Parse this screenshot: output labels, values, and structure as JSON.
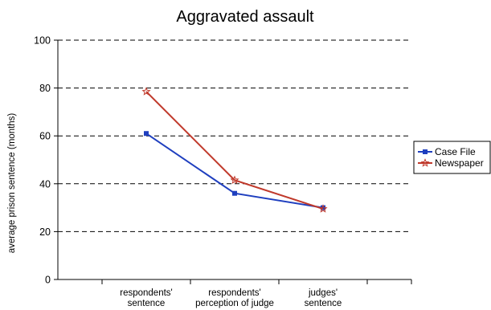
{
  "chart_data": {
    "type": "line",
    "title": "Aggravated assault",
    "xlabel": "",
    "ylabel": "average prison sentence (months)",
    "ylim": [
      0,
      100
    ],
    "yticks": [
      0,
      20,
      40,
      60,
      80,
      100
    ],
    "grid": "horizontal dashed",
    "legend_position": "right",
    "categories": [
      [
        "respondents'",
        "sentence"
      ],
      [
        "respondents'",
        "perception of judge"
      ],
      [
        "judges'",
        "sentence"
      ]
    ],
    "series": [
      {
        "name": "Case File",
        "values": [
          61,
          36,
          30
        ],
        "color": "#1f3fbf",
        "marker": "square"
      },
      {
        "name": "Newspaper",
        "values": [
          78.5,
          41.5,
          29.5
        ],
        "color": "#c0392b",
        "marker": "open-star"
      }
    ]
  }
}
